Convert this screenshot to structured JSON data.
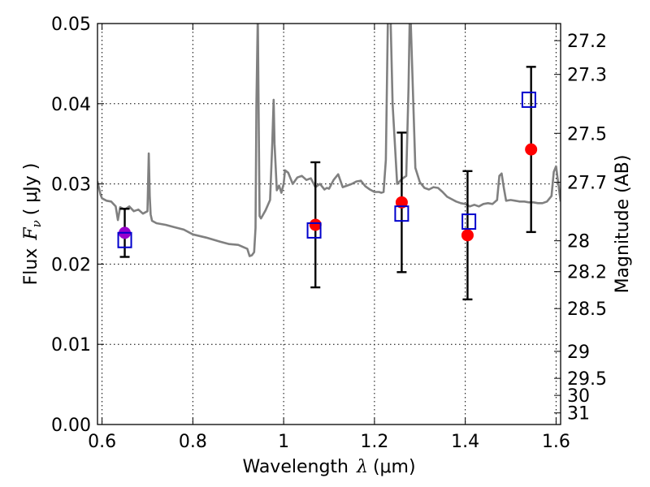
{
  "chart_data": {
    "type": "scatter",
    "xlabel_text": "Wavelength",
    "xlabel_symbol": "λ",
    "xlabel_unit": "(μm)",
    "ylabel_text": "Flux",
    "ylabel_symbol": "F",
    "ylabel_subscript": "ν",
    "ylabel_unit": "( μJy )",
    "ylabel_right": "Magnitude (AB)",
    "xlim": [
      0.59,
      1.61
    ],
    "ylim": [
      0.0,
      0.05
    ],
    "grid": true,
    "x_ticks": [
      {
        "v": 0.6,
        "label": "0.6"
      },
      {
        "v": 0.8,
        "label": "0.8"
      },
      {
        "v": 1.0,
        "label": "1"
      },
      {
        "v": 1.2,
        "label": "1.2"
      },
      {
        "v": 1.4,
        "label": "1.4"
      },
      {
        "v": 1.6,
        "label": "1.6"
      }
    ],
    "y_ticks": [
      {
        "v": 0.0,
        "label": "0.00"
      },
      {
        "v": 0.01,
        "label": "0.01"
      },
      {
        "v": 0.02,
        "label": "0.02"
      },
      {
        "v": 0.03,
        "label": "0.03"
      },
      {
        "v": 0.04,
        "label": "0.04"
      },
      {
        "v": 0.05,
        "label": "0.05"
      }
    ],
    "mag_ticks": [
      {
        "v": 27.2,
        "label": "27.2"
      },
      {
        "v": 27.3,
        "label": "27.3"
      },
      {
        "v": 27.5,
        "label": "27.5"
      },
      {
        "v": 27.7,
        "label": "27.7"
      },
      {
        "v": 28.0,
        "label": "28"
      },
      {
        "v": 28.2,
        "label": "28.2"
      },
      {
        "v": 28.5,
        "label": "28.5"
      },
      {
        "v": 29.0,
        "label": "29"
      },
      {
        "v": 29.5,
        "label": "29.5"
      },
      {
        "v": 30.0,
        "label": "30"
      },
      {
        "v": 31.0,
        "label": "31"
      }
    ],
    "model_sed": {
      "color": "#808080",
      "x": [
        0.59,
        0.597,
        0.6,
        0.61,
        0.62,
        0.63,
        0.635,
        0.64,
        0.65,
        0.66,
        0.67,
        0.68,
        0.69,
        0.7,
        0.703,
        0.705,
        0.707,
        0.71,
        0.72,
        0.74,
        0.76,
        0.78,
        0.8,
        0.83,
        0.86,
        0.88,
        0.9,
        0.92,
        0.925,
        0.93,
        0.935,
        0.938,
        0.94,
        0.943,
        0.945,
        0.947,
        0.95,
        0.96,
        0.97,
        0.975,
        0.978,
        0.98,
        0.985,
        0.99,
        0.995,
        1.0,
        1.003,
        1.01,
        1.02,
        1.03,
        1.04,
        1.05,
        1.06,
        1.07,
        1.08,
        1.09,
        1.095,
        1.1,
        1.11,
        1.12,
        1.13,
        1.14,
        1.15,
        1.16,
        1.17,
        1.18,
        1.19,
        1.2,
        1.21,
        1.215,
        1.22,
        1.225,
        1.23,
        1.235,
        1.24,
        1.25,
        1.26,
        1.27,
        1.275,
        1.278,
        1.28,
        1.29,
        1.3,
        1.31,
        1.32,
        1.33,
        1.34,
        1.35,
        1.36,
        1.37,
        1.38,
        1.39,
        1.4,
        1.41,
        1.42,
        1.43,
        1.44,
        1.45,
        1.46,
        1.47,
        1.475,
        1.48,
        1.485,
        1.49,
        1.5,
        1.51,
        1.52,
        1.53,
        1.54,
        1.55,
        1.56,
        1.57,
        1.58,
        1.59,
        1.595,
        1.6,
        1.605,
        1.61
      ],
      "y": [
        0.0303,
        0.0286,
        0.0282,
        0.0279,
        0.0278,
        0.0272,
        0.0255,
        0.0271,
        0.0268,
        0.0272,
        0.0266,
        0.0268,
        0.0263,
        0.0266,
        0.0338,
        0.0285,
        0.0262,
        0.0254,
        0.0251,
        0.0249,
        0.0246,
        0.0243,
        0.0237,
        0.0233,
        0.0228,
        0.0225,
        0.0224,
        0.0219,
        0.021,
        0.0211,
        0.0215,
        0.0245,
        0.04,
        0.051,
        0.038,
        0.026,
        0.0257,
        0.0267,
        0.028,
        0.035,
        0.0405,
        0.035,
        0.0292,
        0.0298,
        0.0289,
        0.03,
        0.0317,
        0.0314,
        0.03,
        0.0308,
        0.031,
        0.0305,
        0.0307,
        0.0296,
        0.03,
        0.0293,
        0.0295,
        0.0294,
        0.0305,
        0.0312,
        0.0296,
        0.0298,
        0.03,
        0.0303,
        0.0304,
        0.0297,
        0.0293,
        0.029,
        0.029,
        0.0289,
        0.029,
        0.033,
        0.052,
        0.052,
        0.04,
        0.03,
        0.0306,
        0.031,
        0.042,
        0.052,
        0.05,
        0.032,
        0.0302,
        0.0295,
        0.0293,
        0.0296,
        0.0295,
        0.029,
        0.0284,
        0.0281,
        0.0278,
        0.0276,
        0.0275,
        0.0272,
        0.0274,
        0.0272,
        0.0275,
        0.0276,
        0.0275,
        0.028,
        0.031,
        0.0313,
        0.0295,
        0.0279,
        0.028,
        0.0279,
        0.0278,
        0.0278,
        0.0277,
        0.0277,
        0.0276,
        0.0276,
        0.0278,
        0.0285,
        0.0315,
        0.0322,
        0.03,
        0.0278
      ]
    },
    "observed": {
      "color": "#ff0000",
      "points": [
        {
          "x": 0.65,
          "y": 0.0239,
          "yerr": 0.003
        },
        {
          "x": 1.07,
          "y": 0.0249,
          "yerr": 0.0078
        },
        {
          "x": 1.26,
          "y": 0.0277,
          "yerr": 0.0087
        },
        {
          "x": 1.405,
          "y": 0.0236,
          "yerr": 0.008
        },
        {
          "x": 1.545,
          "y": 0.0343,
          "yerr": 0.0103
        }
      ]
    },
    "model_bands": {
      "color": "#0000cc",
      "points": [
        {
          "x": 0.65,
          "y": 0.023
        },
        {
          "x": 1.067,
          "y": 0.0242
        },
        {
          "x": 1.26,
          "y": 0.0263
        },
        {
          "x": 1.408,
          "y": 0.0253
        },
        {
          "x": 1.54,
          "y": 0.0405
        }
      ]
    },
    "overlap_color": "#9900cc"
  }
}
